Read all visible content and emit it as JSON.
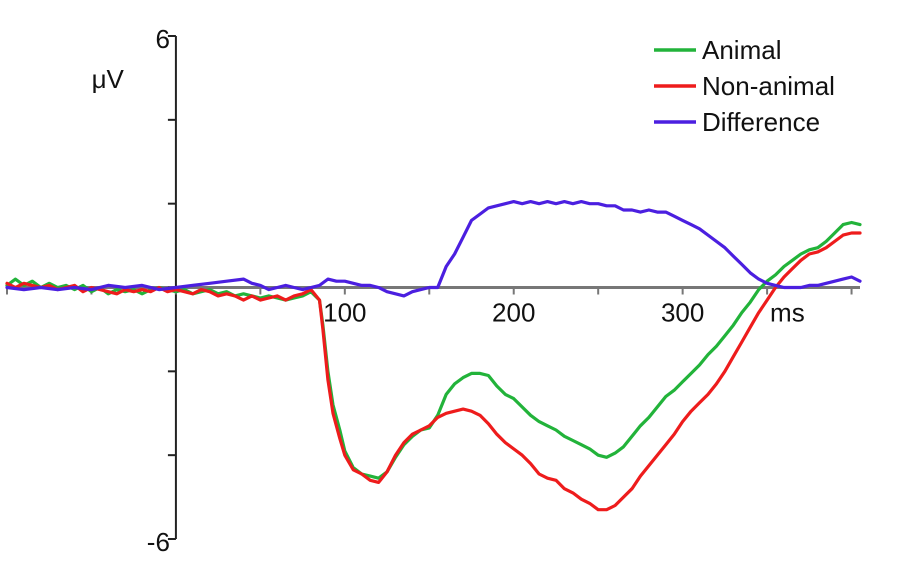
{
  "chart_data": {
    "type": "line",
    "ylabel": "μV",
    "xunit": "ms",
    "xlim": [
      -100,
      405
    ],
    "ylim": [
      -6,
      6
    ],
    "x_tick_labels": [
      {
        "x": 100,
        "label": "100"
      },
      {
        "x": 200,
        "label": "200"
      },
      {
        "x": 300,
        "label": "300"
      }
    ],
    "y_tick_labels": [
      {
        "y": 6,
        "label": "6"
      },
      {
        "y": -6,
        "label": "-6"
      }
    ],
    "y_minor_ticks": [
      6,
      4,
      2,
      0,
      -2,
      -4,
      -6
    ],
    "x_minor_ticks": [
      -100,
      -50,
      0,
      50,
      100,
      150,
      200,
      250,
      300,
      350,
      400
    ],
    "legend_position": "top-right",
    "grid": false,
    "series": [
      {
        "name": "Animal",
        "color": "#22b33a",
        "points": [
          [
            -100,
            0.05
          ],
          [
            -95,
            0.2
          ],
          [
            -90,
            0.05
          ],
          [
            -85,
            0.15
          ],
          [
            -80,
            0.0
          ],
          [
            -75,
            0.1
          ],
          [
            -70,
            0.0
          ],
          [
            -65,
            0.05
          ],
          [
            -60,
            -0.05
          ],
          [
            -55,
            0.05
          ],
          [
            -50,
            -0.1
          ],
          [
            -45,
            0.0
          ],
          [
            -40,
            -0.15
          ],
          [
            -35,
            -0.05
          ],
          [
            -30,
            -0.1
          ],
          [
            -25,
            -0.05
          ],
          [
            -20,
            -0.15
          ],
          [
            -15,
            -0.05
          ],
          [
            -10,
            0.0
          ],
          [
            -5,
            -0.05
          ],
          [
            0,
            -0.1
          ],
          [
            5,
            -0.05
          ],
          [
            10,
            -0.15
          ],
          [
            15,
            -0.1
          ],
          [
            20,
            -0.05
          ],
          [
            25,
            -0.15
          ],
          [
            30,
            -0.1
          ],
          [
            35,
            -0.2
          ],
          [
            40,
            -0.15
          ],
          [
            45,
            -0.2
          ],
          [
            50,
            -0.25
          ],
          [
            55,
            -0.2
          ],
          [
            60,
            -0.25
          ],
          [
            65,
            -0.3
          ],
          [
            70,
            -0.25
          ],
          [
            75,
            -0.2
          ],
          [
            80,
            -0.1
          ],
          [
            85,
            -0.3
          ],
          [
            87,
            -0.9
          ],
          [
            90,
            -2.0
          ],
          [
            93,
            -2.8
          ],
          [
            97,
            -3.4
          ],
          [
            100,
            -3.9
          ],
          [
            105,
            -4.3
          ],
          [
            110,
            -4.45
          ],
          [
            115,
            -4.5
          ],
          [
            120,
            -4.55
          ],
          [
            125,
            -4.4
          ],
          [
            130,
            -4.05
          ],
          [
            135,
            -3.75
          ],
          [
            140,
            -3.55
          ],
          [
            145,
            -3.4
          ],
          [
            150,
            -3.35
          ],
          [
            155,
            -3.05
          ],
          [
            160,
            -2.55
          ],
          [
            165,
            -2.3
          ],
          [
            170,
            -2.15
          ],
          [
            175,
            -2.05
          ],
          [
            180,
            -2.05
          ],
          [
            185,
            -2.1
          ],
          [
            190,
            -2.35
          ],
          [
            195,
            -2.55
          ],
          [
            200,
            -2.65
          ],
          [
            205,
            -2.85
          ],
          [
            210,
            -3.05
          ],
          [
            215,
            -3.2
          ],
          [
            220,
            -3.3
          ],
          [
            225,
            -3.4
          ],
          [
            230,
            -3.55
          ],
          [
            235,
            -3.65
          ],
          [
            240,
            -3.75
          ],
          [
            245,
            -3.85
          ],
          [
            250,
            -4.0
          ],
          [
            255,
            -4.05
          ],
          [
            260,
            -3.95
          ],
          [
            265,
            -3.8
          ],
          [
            270,
            -3.55
          ],
          [
            275,
            -3.3
          ],
          [
            280,
            -3.1
          ],
          [
            285,
            -2.85
          ],
          [
            290,
            -2.6
          ],
          [
            295,
            -2.45
          ],
          [
            300,
            -2.25
          ],
          [
            305,
            -2.05
          ],
          [
            310,
            -1.85
          ],
          [
            315,
            -1.6
          ],
          [
            320,
            -1.4
          ],
          [
            325,
            -1.15
          ],
          [
            330,
            -0.9
          ],
          [
            335,
            -0.6
          ],
          [
            340,
            -0.35
          ],
          [
            345,
            -0.05
          ],
          [
            350,
            0.15
          ],
          [
            355,
            0.3
          ],
          [
            360,
            0.5
          ],
          [
            365,
            0.65
          ],
          [
            370,
            0.8
          ],
          [
            375,
            0.9
          ],
          [
            380,
            0.95
          ],
          [
            385,
            1.1
          ],
          [
            390,
            1.3
          ],
          [
            395,
            1.5
          ],
          [
            400,
            1.55
          ],
          [
            405,
            1.5
          ]
        ]
      },
      {
        "name": "Non-animal",
        "color": "#ee1c1c",
        "points": [
          [
            -100,
            0.1
          ],
          [
            -95,
            0.0
          ],
          [
            -90,
            0.1
          ],
          [
            -85,
            0.05
          ],
          [
            -80,
            0.0
          ],
          [
            -75,
            0.05
          ],
          [
            -70,
            -0.05
          ],
          [
            -65,
            0.0
          ],
          [
            -60,
            0.05
          ],
          [
            -55,
            -0.1
          ],
          [
            -50,
            0.0
          ],
          [
            -45,
            -0.05
          ],
          [
            -40,
            -0.1
          ],
          [
            -35,
            -0.15
          ],
          [
            -30,
            -0.05
          ],
          [
            -25,
            -0.1
          ],
          [
            -20,
            -0.05
          ],
          [
            -15,
            -0.1
          ],
          [
            -10,
            0.0
          ],
          [
            -5,
            -0.1
          ],
          [
            0,
            -0.05
          ],
          [
            5,
            -0.1
          ],
          [
            10,
            -0.15
          ],
          [
            15,
            -0.05
          ],
          [
            20,
            -0.1
          ],
          [
            25,
            -0.2
          ],
          [
            30,
            -0.15
          ],
          [
            35,
            -0.2
          ],
          [
            40,
            -0.3
          ],
          [
            45,
            -0.2
          ],
          [
            50,
            -0.3
          ],
          [
            55,
            -0.25
          ],
          [
            60,
            -0.2
          ],
          [
            65,
            -0.3
          ],
          [
            70,
            -0.2
          ],
          [
            75,
            -0.15
          ],
          [
            80,
            -0.05
          ],
          [
            85,
            -0.3
          ],
          [
            87,
            -1.0
          ],
          [
            90,
            -2.2
          ],
          [
            93,
            -3.0
          ],
          [
            97,
            -3.6
          ],
          [
            100,
            -4.0
          ],
          [
            105,
            -4.35
          ],
          [
            110,
            -4.45
          ],
          [
            115,
            -4.6
          ],
          [
            120,
            -4.65
          ],
          [
            125,
            -4.4
          ],
          [
            130,
            -4.0
          ],
          [
            135,
            -3.7
          ],
          [
            140,
            -3.5
          ],
          [
            145,
            -3.4
          ],
          [
            150,
            -3.3
          ],
          [
            155,
            -3.1
          ],
          [
            160,
            -3.0
          ],
          [
            165,
            -2.95
          ],
          [
            170,
            -2.9
          ],
          [
            175,
            -2.95
          ],
          [
            180,
            -3.05
          ],
          [
            185,
            -3.25
          ],
          [
            190,
            -3.5
          ],
          [
            195,
            -3.7
          ],
          [
            200,
            -3.85
          ],
          [
            205,
            -4.0
          ],
          [
            210,
            -4.2
          ],
          [
            215,
            -4.45
          ],
          [
            220,
            -4.55
          ],
          [
            225,
            -4.6
          ],
          [
            230,
            -4.8
          ],
          [
            235,
            -4.9
          ],
          [
            240,
            -5.05
          ],
          [
            245,
            -5.15
          ],
          [
            250,
            -5.3
          ],
          [
            255,
            -5.3
          ],
          [
            260,
            -5.2
          ],
          [
            265,
            -5.0
          ],
          [
            270,
            -4.8
          ],
          [
            275,
            -4.5
          ],
          [
            280,
            -4.25
          ],
          [
            285,
            -4.0
          ],
          [
            290,
            -3.75
          ],
          [
            295,
            -3.5
          ],
          [
            300,
            -3.2
          ],
          [
            305,
            -2.95
          ],
          [
            310,
            -2.75
          ],
          [
            315,
            -2.55
          ],
          [
            320,
            -2.3
          ],
          [
            325,
            -2.0
          ],
          [
            330,
            -1.65
          ],
          [
            335,
            -1.3
          ],
          [
            340,
            -0.95
          ],
          [
            345,
            -0.6
          ],
          [
            350,
            -0.3
          ],
          [
            355,
            0.0
          ],
          [
            360,
            0.25
          ],
          [
            365,
            0.45
          ],
          [
            370,
            0.65
          ],
          [
            375,
            0.8
          ],
          [
            380,
            0.85
          ],
          [
            385,
            0.95
          ],
          [
            390,
            1.1
          ],
          [
            395,
            1.25
          ],
          [
            400,
            1.3
          ],
          [
            405,
            1.3
          ]
        ]
      },
      {
        "name": "Difference",
        "color": "#4b1fe0",
        "points": [
          [
            -100,
            0.0
          ],
          [
            -90,
            -0.05
          ],
          [
            -80,
            0.0
          ],
          [
            -70,
            -0.05
          ],
          [
            -60,
            0.0
          ],
          [
            -50,
            -0.05
          ],
          [
            -40,
            0.05
          ],
          [
            -30,
            0.0
          ],
          [
            -20,
            0.05
          ],
          [
            -10,
            -0.05
          ],
          [
            0,
            0.0
          ],
          [
            10,
            0.05
          ],
          [
            20,
            0.1
          ],
          [
            30,
            0.15
          ],
          [
            40,
            0.2
          ],
          [
            45,
            0.1
          ],
          [
            50,
            0.05
          ],
          [
            55,
            -0.05
          ],
          [
            60,
            0.0
          ],
          [
            65,
            0.05
          ],
          [
            70,
            0.0
          ],
          [
            75,
            -0.05
          ],
          [
            80,
            0.0
          ],
          [
            85,
            0.05
          ],
          [
            90,
            0.2
          ],
          [
            95,
            0.15
          ],
          [
            100,
            0.15
          ],
          [
            105,
            0.1
          ],
          [
            110,
            0.05
          ],
          [
            115,
            0.05
          ],
          [
            120,
            0.0
          ],
          [
            125,
            -0.1
          ],
          [
            130,
            -0.15
          ],
          [
            135,
            -0.2
          ],
          [
            140,
            -0.1
          ],
          [
            145,
            -0.05
          ],
          [
            150,
            0.0
          ],
          [
            155,
            0.0
          ],
          [
            160,
            0.5
          ],
          [
            165,
            0.8
          ],
          [
            170,
            1.2
          ],
          [
            175,
            1.6
          ],
          [
            180,
            1.75
          ],
          [
            185,
            1.9
          ],
          [
            190,
            1.95
          ],
          [
            195,
            2.0
          ],
          [
            200,
            2.05
          ],
          [
            205,
            2.0
          ],
          [
            210,
            2.05
          ],
          [
            215,
            2.0
          ],
          [
            220,
            2.05
          ],
          [
            225,
            2.0
          ],
          [
            230,
            2.05
          ],
          [
            235,
            2.0
          ],
          [
            240,
            2.05
          ],
          [
            245,
            2.0
          ],
          [
            250,
            2.0
          ],
          [
            255,
            1.95
          ],
          [
            260,
            1.95
          ],
          [
            265,
            1.85
          ],
          [
            270,
            1.85
          ],
          [
            275,
            1.8
          ],
          [
            280,
            1.85
          ],
          [
            285,
            1.8
          ],
          [
            290,
            1.8
          ],
          [
            295,
            1.7
          ],
          [
            300,
            1.6
          ],
          [
            305,
            1.5
          ],
          [
            310,
            1.4
          ],
          [
            315,
            1.25
          ],
          [
            320,
            1.1
          ],
          [
            325,
            0.95
          ],
          [
            330,
            0.75
          ],
          [
            335,
            0.55
          ],
          [
            340,
            0.35
          ],
          [
            345,
            0.2
          ],
          [
            350,
            0.1
          ],
          [
            355,
            0.05
          ],
          [
            360,
            0.0
          ],
          [
            365,
            0.0
          ],
          [
            370,
            0.0
          ],
          [
            375,
            0.05
          ],
          [
            380,
            0.05
          ],
          [
            385,
            0.1
          ],
          [
            390,
            0.15
          ],
          [
            395,
            0.2
          ],
          [
            400,
            0.25
          ],
          [
            405,
            0.15
          ]
        ]
      }
    ]
  }
}
